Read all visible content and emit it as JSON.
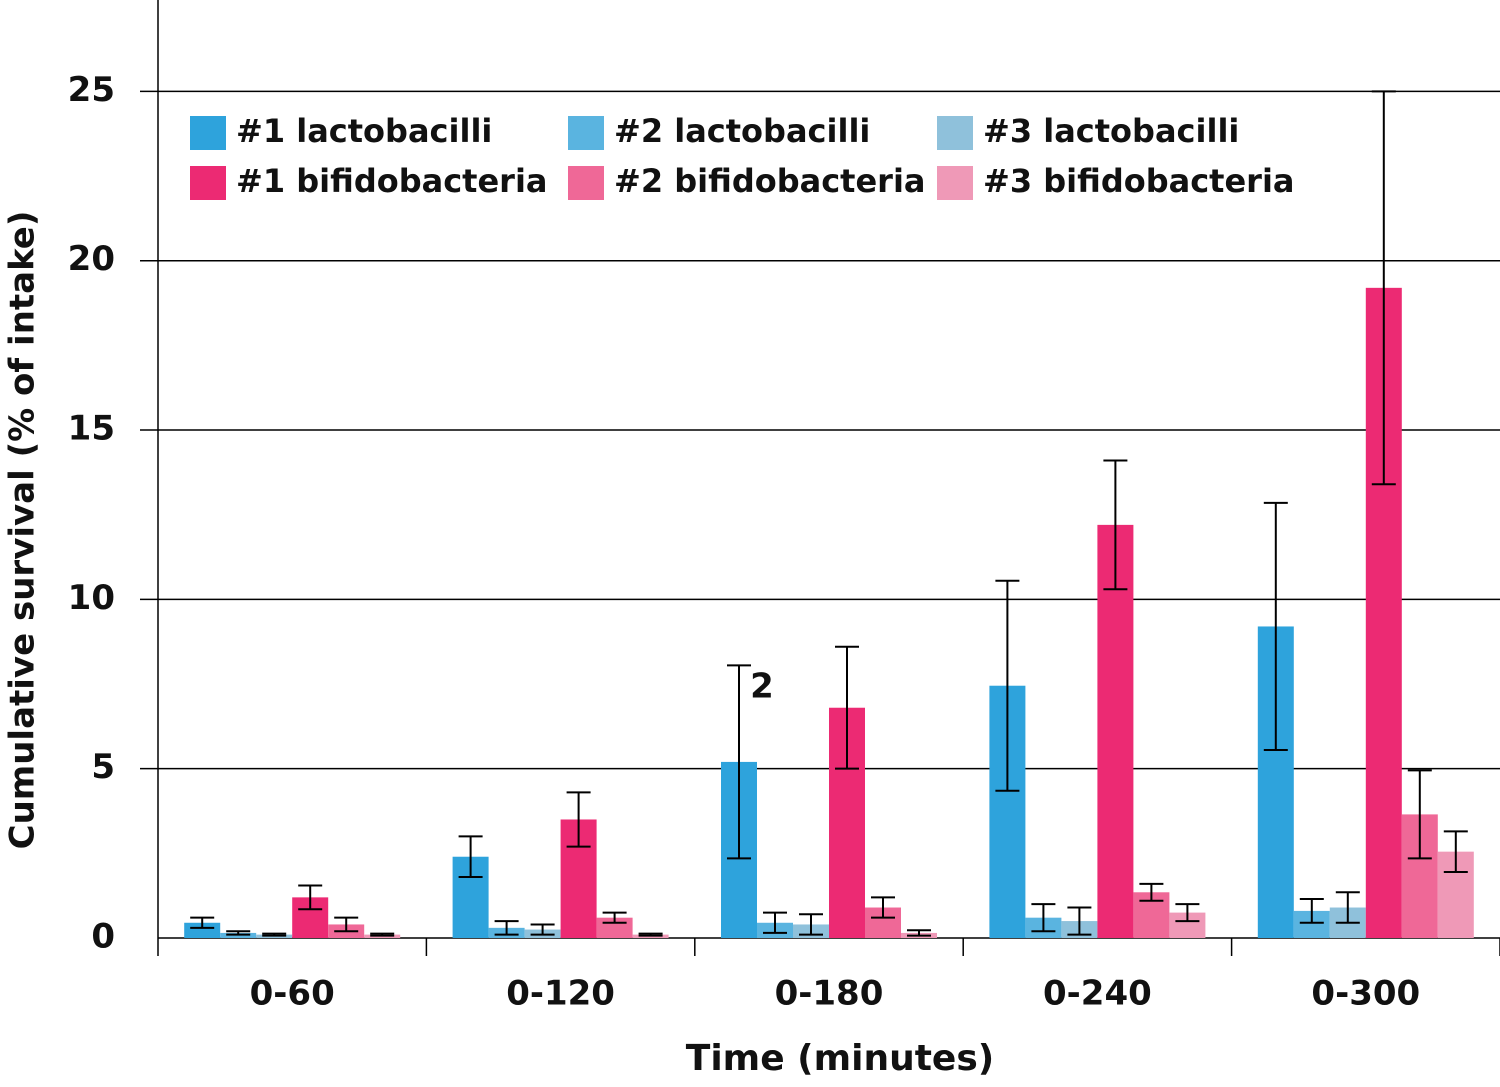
{
  "chart_data": {
    "type": "bar",
    "x_label": "Time (minutes)",
    "y_label": "Cumulative survival (% of intake)",
    "annotation": "2",
    "categories": [
      "0-60",
      "0-120",
      "0-180",
      "0-240",
      "0-300"
    ],
    "series": [
      {
        "name": "#1 lactobacilli",
        "color": "#2ea3dc",
        "values": [
          0.45,
          2.4,
          5.2,
          7.45,
          9.2
        ],
        "errors": [
          0.15,
          0.6,
          2.85,
          3.1,
          3.65
        ]
      },
      {
        "name": "#2 lactobacilli",
        "color": "#5ab4e0",
        "values": [
          0.15,
          0.3,
          0.45,
          0.6,
          0.8
        ],
        "errors": [
          0.05,
          0.2,
          0.3,
          0.4,
          0.35
        ]
      },
      {
        "name": "#3 lactobacilli",
        "color": "#8fc1db",
        "values": [
          0.1,
          0.25,
          0.4,
          0.5,
          0.9
        ],
        "errors": [
          0.03,
          0.15,
          0.3,
          0.4,
          0.45
        ]
      },
      {
        "name": "#1 bifidobacteria",
        "color": "#ec2a73",
        "values": [
          1.2,
          3.5,
          6.8,
          12.2,
          19.2
        ],
        "errors": [
          0.35,
          0.8,
          1.8,
          1.9,
          5.8
        ]
      },
      {
        "name": "#2 bifidobacteria",
        "color": "#ef6897",
        "values": [
          0.4,
          0.6,
          0.9,
          1.35,
          3.65
        ],
        "errors": [
          0.2,
          0.15,
          0.3,
          0.25,
          1.3
        ]
      },
      {
        "name": "#3 bifidobacteria",
        "color": "#ef99b7",
        "values": [
          0.1,
          0.1,
          0.15,
          0.75,
          2.55
        ],
        "errors": [
          0.03,
          0.03,
          0.08,
          0.25,
          0.6
        ]
      }
    ],
    "ylim": [
      0,
      27.7
    ],
    "yticks": [
      0,
      5,
      10,
      15,
      20,
      25
    ],
    "grid": true
  }
}
